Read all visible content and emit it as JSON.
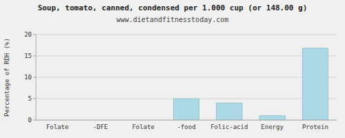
{
  "chart_data": {
    "type": "bar",
    "title": "Soup, tomato, canned, condensed per 1.000 cup (or 148.00 g)",
    "subtitle": "www.dietandfitnesstoday.com",
    "ylabel": "Percentage of RDH (%)",
    "categories": [
      "Folate",
      "-DFE",
      "Folate",
      "-food",
      "Folic-acid",
      "Energy",
      "Protein"
    ],
    "values": [
      0,
      0,
      0,
      5.0,
      4.0,
      1.0,
      16.8
    ],
    "color": "#add8e6",
    "ylim": [
      0,
      20
    ],
    "yticks": [
      0,
      5,
      10,
      15,
      20
    ],
    "grid": true
  }
}
